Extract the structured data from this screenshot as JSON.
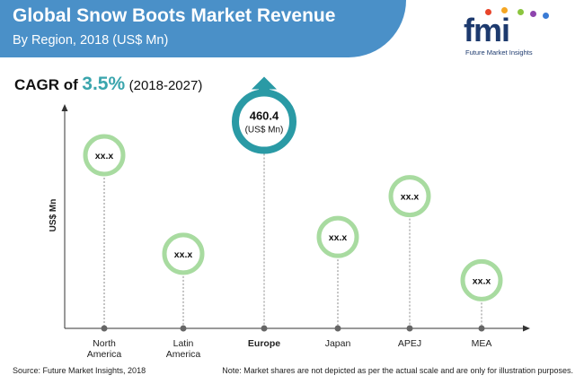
{
  "header": {
    "title": "Global Snow Boots Market Revenue",
    "subtitle": "By Region, 2018 (US$ Mn)"
  },
  "logo": {
    "mark": "fmi",
    "text": "Future Market Insights",
    "dot_colors": [
      "#e8442a",
      "#f5a623",
      "#8bc53f",
      "#8e44ad",
      "#3a7bd5"
    ]
  },
  "cagr": {
    "label": "CAGR of",
    "value": "3.5%",
    "period": "(2018-2027)"
  },
  "colors": {
    "accent": "#3aa5ad",
    "bubble_ring": "#a8dba0",
    "highlight_ring": "#2a9aa5",
    "banner": "#4a90c8"
  },
  "chart_data": {
    "type": "bubble-lollipop",
    "ylabel": "US$ Mn",
    "categories": [
      "North\nAmerica",
      "Latin\nAmerica",
      "Europe",
      "Japan",
      "APEJ",
      "MEA"
    ],
    "highlight": "Europe",
    "points": [
      {
        "category": "North\nAmerica",
        "label": "xx.x",
        "level": 0.72
      },
      {
        "category": "Latin\nAmerica",
        "label": "xx.x",
        "level": 0.31
      },
      {
        "category": "Europe",
        "label": "460.4",
        "sublabel": "(US$ Mn)",
        "level": 0.86
      },
      {
        "category": "Japan",
        "label": "xx.x",
        "level": 0.38
      },
      {
        "category": "APEJ",
        "label": "xx.x",
        "level": 0.55
      },
      {
        "category": "MEA",
        "label": "xx.x",
        "level": 0.2
      }
    ],
    "grid": false
  },
  "footer": {
    "source": "Source: Future Market Insights, 2018",
    "note": "Note: Market shares are not depicted as per the actual scale and are only for illustration purposes."
  }
}
